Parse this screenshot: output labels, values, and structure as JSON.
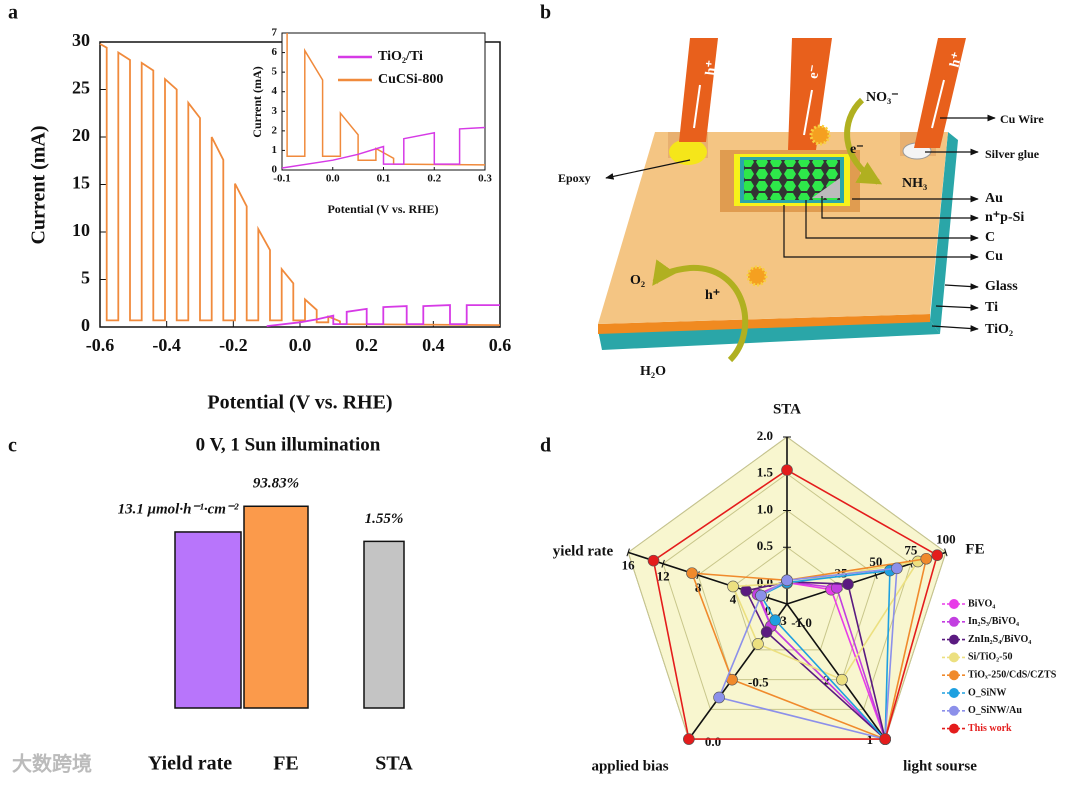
{
  "chart_data": [
    {
      "type": "line",
      "panel": "a",
      "xlabel": "Potential (V vs. RHE)",
      "ylabel": "Current (mA)",
      "xlim": [
        -0.6,
        0.6
      ],
      "ylim": [
        0,
        30
      ],
      "xticks": [
        -0.6,
        -0.4,
        -0.2,
        {
          "value": 0,
          "label": "0.0"
        },
        0.2,
        0.4,
        0.6
      ],
      "yticks": [
        0,
        5,
        10,
        15,
        20,
        25,
        30
      ],
      "series": [
        {
          "name": "TiO₂/Ti",
          "color": "#d63ae6",
          "x": [
            -0.1,
            0.0,
            0.05,
            0.1,
            0.1,
            0.14,
            0.14,
            0.2,
            0.2,
            0.25,
            0.25,
            0.32,
            0.32,
            0.37,
            0.37,
            0.45,
            0.45,
            0.5,
            0.5,
            0.6
          ],
          "values": [
            0.1,
            0.5,
            0.8,
            1.2,
            0.3,
            0.3,
            1.6,
            1.9,
            0.3,
            0.3,
            2.1,
            2.2,
            0.3,
            0.3,
            2.2,
            2.3,
            0.3,
            0.3,
            2.3,
            2.3
          ]
        },
        {
          "name": "CuCSi-800",
          "color": "#f08a3c",
          "x": [
            -0.6,
            -0.58,
            -0.58,
            -0.545,
            -0.545,
            -0.51,
            -0.51,
            -0.475,
            -0.475,
            -0.44,
            -0.44,
            -0.405,
            -0.405,
            -0.37,
            -0.37,
            -0.335,
            -0.335,
            -0.3,
            -0.3,
            -0.265,
            -0.265,
            -0.23,
            -0.23,
            -0.195,
            -0.195,
            -0.16,
            -0.16,
            -0.125,
            -0.125,
            -0.09,
            -0.09,
            -0.055,
            -0.055,
            -0.02,
            -0.02,
            0.015,
            0.015,
            0.05,
            0.05,
            0.085,
            0.085,
            0.12,
            0.12,
            0.6
          ],
          "values": [
            29.8,
            29.4,
            0.7,
            0.7,
            28.9,
            28.1,
            0.7,
            0.7,
            27.8,
            27.0,
            0.7,
            0.7,
            26.1,
            25.0,
            0.7,
            0.7,
            23.6,
            22.0,
            0.7,
            0.7,
            20.0,
            17.6,
            0.7,
            0.7,
            15.1,
            12.7,
            0.7,
            0.7,
            10.3,
            8.1,
            0.7,
            0.7,
            6.1,
            4.6,
            0.7,
            0.7,
            2.9,
            1.8,
            0.5,
            0.5,
            1.1,
            0.6,
            0.3,
            0.2
          ]
        }
      ],
      "inset": {
        "xlabel": "Potential (V vs. RHE)",
        "ylabel": "Current (mA)",
        "xlim": [
          -0.1,
          0.3
        ],
        "ylim": [
          0,
          7
        ],
        "xticks": [
          -0.1,
          {
            "value": 0,
            "label": "0.0"
          },
          0.1,
          0.2,
          0.3
        ],
        "yticks": [
          0,
          1,
          2,
          3,
          4,
          5,
          6,
          7
        ]
      }
    },
    {
      "type": "bar",
      "panel": "c",
      "title": "0 V, 1 Sun illumination",
      "categories": [
        "Yield rate",
        "FE",
        "STA"
      ],
      "values": [
        13.1,
        93.83,
        1.55
      ],
      "value_labels": [
        "13.1 μmol·h⁻¹·cm⁻²",
        "93.83%",
        "1.55%"
      ],
      "colors": [
        "#b875fb",
        "#fb9a4b",
        "#c4c4c4"
      ]
    },
    {
      "type": "radar",
      "panel": "d",
      "axes": [
        {
          "name": "STA",
          "lim": [
            0,
            2
          ],
          "ticks": [
            {
              "value": 0,
              "label": "0.0"
            },
            0.5,
            {
              "value": 1,
              "label": "1.0"
            },
            1.5,
            {
              "value": 2,
              "label": "2.0"
            }
          ]
        },
        {
          "name": "FE",
          "lim": [
            0,
            100
          ],
          "ticks": [
            25,
            50,
            75,
            100
          ]
        },
        {
          "name": "light sourse",
          "lim": [
            3,
            1
          ],
          "ticks": [
            3,
            2,
            1
          ]
        },
        {
          "name": "applied bias",
          "lim": [
            -1,
            0
          ],
          "ticks": [
            {
              "value": -1,
              "label": "-1.0"
            },
            -0.5,
            {
              "value": 0,
              "label": "0.0"
            }
          ]
        },
        {
          "name": "yield rate",
          "lim": [
            0,
            16
          ],
          "ticks": [
            0,
            4,
            8,
            12,
            16
          ]
        }
      ],
      "series": [
        {
          "name": "BiVO₄",
          "color": "#e83ce8",
          "values": [
            0.02,
            18,
            1,
            -0.95,
            1.0
          ]
        },
        {
          "name": "In₂S₃/BiVO₄",
          "color": "#c23fe0",
          "values": [
            0.03,
            22,
            1,
            -0.95,
            1.2
          ]
        },
        {
          "name": "ZnIn₂S₄/BiVO₄",
          "color": "#5a1a80",
          "values": [
            0.03,
            30,
            1,
            -0.9,
            2.5
          ]
        },
        {
          "name": "Si/TiO₂-50",
          "color": "#ece080",
          "values": [
            0.01,
            80,
            2,
            -0.8,
            4.0
          ]
        },
        {
          "name": "TiOₓ-250/CdS/CZTS",
          "color": "#f08a2c",
          "values": [
            0.05,
            86,
            1,
            -0.5,
            8.7
          ]
        },
        {
          "name": "O_SiNW",
          "color": "#1ea0e0",
          "values": [
            0.02,
            60,
            1,
            -1.0,
            0.8
          ]
        },
        {
          "name": "O_SiNW/Au",
          "color": "#8c90ea",
          "values": [
            0.05,
            65,
            1,
            -0.35,
            0.8
          ]
        },
        {
          "name": "This work",
          "color": "#e41c1c",
          "text_color": "#e41c1c",
          "values": [
            1.55,
            93.83,
            1,
            0,
            13.1
          ]
        }
      ]
    }
  ],
  "diagram": {
    "panel": "b",
    "labels": [
      "h⁺",
      "e⁻",
      "h⁺",
      "NO₃⁻",
      "e⁻",
      "NH₃",
      "Cu Wire",
      "Silver glue",
      "Epoxy",
      "Au",
      "n⁺p-Si",
      "C",
      "Cu",
      "Glass",
      "Ti",
      "TiO₂",
      "O₂",
      "h⁺",
      "H₂O"
    ]
  },
  "watermark": "大数跨境"
}
